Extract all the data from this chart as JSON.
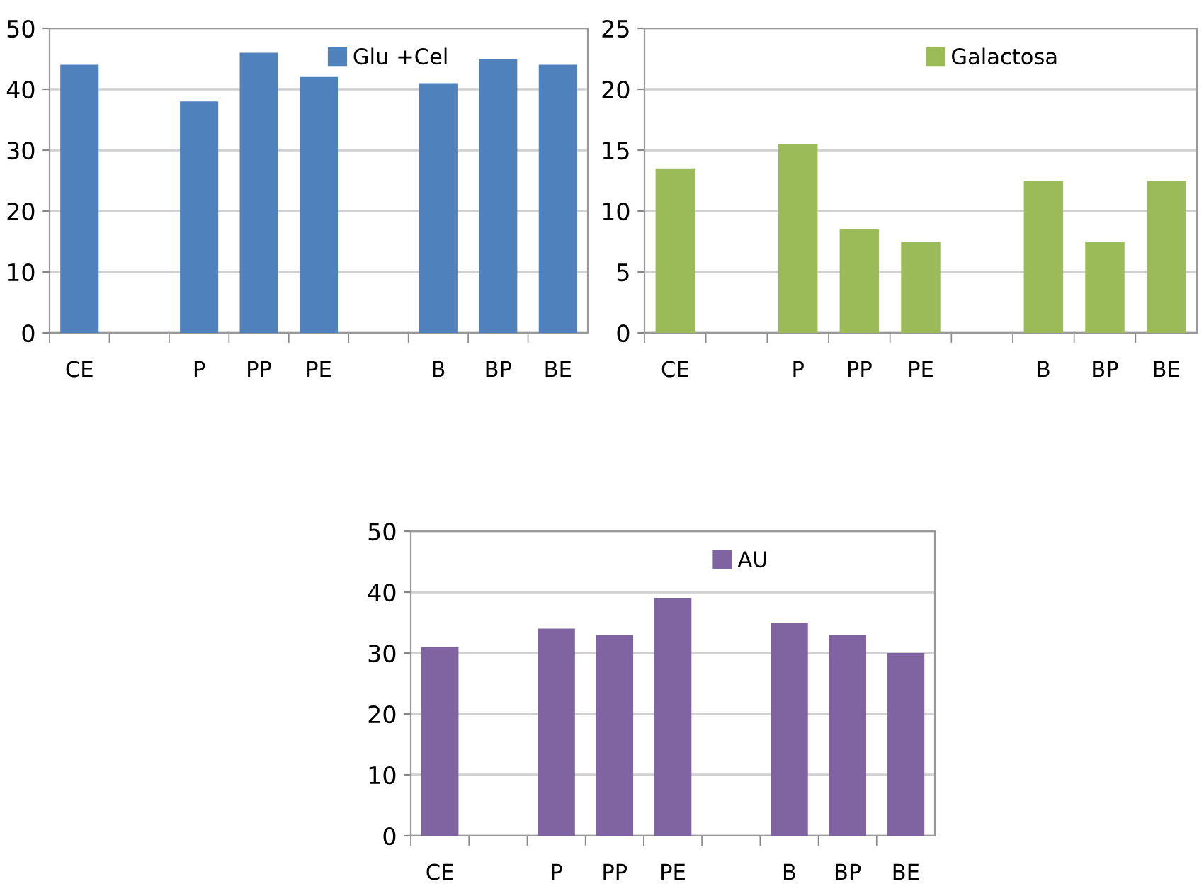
{
  "chart_data": [
    {
      "type": "bar",
      "categories": [
        "CE",
        null,
        "P",
        "PP",
        "PE",
        null,
        "B",
        "BP",
        "BE"
      ],
      "series": [
        {
          "name": "Glu +Cel",
          "color": "#4f81bd",
          "values": [
            44,
            null,
            38,
            46,
            42,
            null,
            41,
            45,
            44
          ]
        }
      ],
      "ylim": [
        0,
        50
      ],
      "yticks": [
        0,
        10,
        20,
        30,
        40,
        50
      ],
      "grid": "y",
      "legend": "top right"
    },
    {
      "type": "bar",
      "categories": [
        "CE",
        null,
        "P",
        "PP",
        "PE",
        null,
        "B",
        "BP",
        "BE"
      ],
      "series": [
        {
          "name": "Galactosa",
          "color": "#9bbb59",
          "values": [
            13.5,
            null,
            15.5,
            8.5,
            7.5,
            null,
            12.5,
            7.5,
            12.5
          ]
        }
      ],
      "ylim": [
        0,
        25
      ],
      "yticks": [
        0,
        5,
        10,
        15,
        20,
        25
      ],
      "grid": "y",
      "legend": "top right"
    },
    {
      "type": "bar",
      "categories": [
        "CE",
        null,
        "P",
        "PP",
        "PE",
        null,
        "B",
        "BP",
        "BE"
      ],
      "series": [
        {
          "name": "AU",
          "color": "#8064a2",
          "values": [
            31,
            null,
            34,
            33,
            39,
            null,
            35,
            33,
            30
          ]
        }
      ],
      "ylim": [
        0,
        50
      ],
      "yticks": [
        0,
        10,
        20,
        30,
        40,
        50
      ],
      "grid": "y",
      "legend": "top right"
    }
  ]
}
